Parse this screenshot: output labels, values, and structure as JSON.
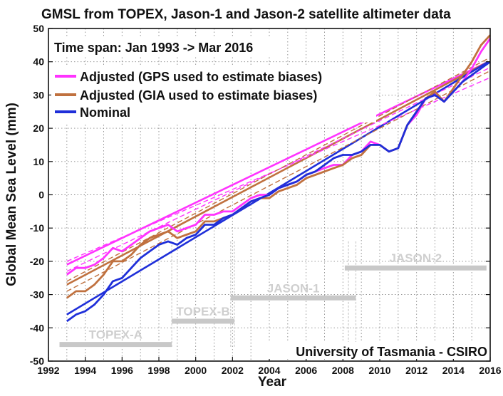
{
  "chart_data": {
    "type": "line",
    "title": "GMSL from TOPEX, Jason-1 and Jason-2 satellite altimeter data",
    "xlabel": "Year",
    "ylabel": "Global Mean Sea Level (mm)",
    "xlim": [
      1992,
      2016
    ],
    "ylim": [
      -50,
      50
    ],
    "xticks": [
      1992,
      1994,
      1996,
      1998,
      2000,
      2002,
      2004,
      2006,
      2008,
      2010,
      2012,
      2014,
      2016
    ],
    "yticks": [
      -50,
      -40,
      -30,
      -20,
      -10,
      0,
      10,
      20,
      30,
      40,
      50
    ],
    "grid": true,
    "legend_position": "top-left",
    "annotation_top": "Time span: Jan 1993 -> Mar 2016",
    "annotation_bottom": "University of Tasmania - CSIRO",
    "series": [
      {
        "name": "Adjusted (GPS used to estimate biases)",
        "color": "#ff33ff",
        "x": [
          1993.0,
          1993.5,
          1994.0,
          1994.5,
          1995.0,
          1995.5,
          1996.0,
          1996.5,
          1997.0,
          1997.5,
          1998.0,
          1998.5,
          1999.0,
          1999.5,
          2000.0,
          2000.5,
          2001.0,
          2001.5,
          2002.0,
          2002.5,
          2003.0,
          2003.5,
          2004.0,
          2004.5,
          2005.0,
          2005.5,
          2006.0,
          2006.5,
          2007.0,
          2007.5,
          2008.0,
          2008.5,
          2009.0,
          2009.5,
          2010.0,
          2010.5,
          2011.0,
          2011.5,
          2012.0,
          2012.5,
          2013.0,
          2013.5,
          2014.0,
          2014.5,
          2015.0,
          2015.5,
          2016.0
        ],
        "y": [
          -24,
          -22,
          -22,
          -21,
          -19,
          -16,
          -17,
          -15,
          -13,
          -11,
          -10,
          -9,
          -11,
          -10,
          -9,
          -6,
          -6,
          -5,
          -5,
          -3,
          -1,
          0,
          0,
          2,
          3,
          4,
          6,
          7,
          8,
          9,
          9,
          12,
          13,
          16,
          15,
          13,
          14,
          21,
          24,
          29,
          30,
          28,
          31,
          34,
          38,
          43,
          47
        ]
      },
      {
        "name": "Adjusted (GIA used to estimate biases)",
        "color": "#c0713f",
        "x": [
          1993.0,
          1993.5,
          1994.0,
          1994.5,
          1995.0,
          1995.5,
          1996.0,
          1996.5,
          1997.0,
          1997.5,
          1998.0,
          1998.5,
          1999.0,
          1999.5,
          2000.0,
          2000.5,
          2001.0,
          2001.5,
          2002.0,
          2002.5,
          2003.0,
          2003.5,
          2004.0,
          2004.5,
          2005.0,
          2005.5,
          2006.0,
          2006.5,
          2007.0,
          2007.5,
          2008.0,
          2008.5,
          2009.0,
          2009.5,
          2010.0,
          2010.5,
          2011.0,
          2011.5,
          2012.0,
          2012.5,
          2013.0,
          2013.5,
          2014.0,
          2014.5,
          2015.0,
          2015.5,
          2016.0
        ],
        "y": [
          -31,
          -29,
          -29,
          -27,
          -24,
          -20,
          -20,
          -18,
          -15,
          -13,
          -12,
          -11,
          -13,
          -12,
          -11,
          -8,
          -8,
          -7,
          -6,
          -4,
          -2,
          -1,
          -1,
          1,
          2,
          3,
          5,
          6,
          7,
          8,
          9,
          11,
          12,
          15,
          15,
          13,
          14,
          21,
          25,
          29,
          31,
          28,
          32,
          36,
          40,
          45,
          48
        ]
      },
      {
        "name": "Nominal",
        "color": "#1f2fd9",
        "x": [
          1993.0,
          1993.5,
          1994.0,
          1994.5,
          1995.0,
          1995.5,
          1996.0,
          1996.5,
          1997.0,
          1997.5,
          1998.0,
          1998.5,
          1999.0,
          1999.5,
          2000.0,
          2000.5,
          2001.0,
          2001.5,
          2002.0,
          2002.5,
          2003.0,
          2003.5,
          2004.0,
          2004.5,
          2005.0,
          2005.5,
          2006.0,
          2006.5,
          2007.0,
          2007.5,
          2008.0,
          2008.5,
          2009.0,
          2009.5,
          2010.0,
          2010.5,
          2011.0,
          2011.5,
          2012.0,
          2012.5,
          2013.0,
          2013.5,
          2014.0,
          2014.5,
          2015.0,
          2015.5,
          2016.0
        ],
        "y": [
          -38,
          -36,
          -35,
          -33,
          -30,
          -26,
          -25,
          -22,
          -19,
          -17,
          -15,
          -14,
          -15,
          -13,
          -12,
          -9,
          -9,
          -7,
          -6,
          -4,
          -2,
          -1,
          0,
          2,
          3,
          4,
          6,
          7,
          9,
          11,
          12,
          12,
          13,
          15,
          15,
          13,
          14,
          21,
          25,
          29,
          30,
          28,
          31,
          34,
          36,
          38,
          40
        ]
      }
    ],
    "trend_lines": [
      {
        "color": "#ff33ff",
        "dashed": false,
        "x": [
          1993.0,
          2015.9
        ],
        "y": [
          -21,
          40
        ]
      },
      {
        "color": "#c0713f",
        "dashed": false,
        "x": [
          1993.0,
          2015.9
        ],
        "y": [
          -27,
          40
        ]
      },
      {
        "color": "#1f2fd9",
        "dashed": false,
        "x": [
          1993.0,
          2015.9
        ],
        "y": [
          -36,
          40
        ]
      },
      {
        "color": "#ff33ff",
        "dashed": true,
        "x": [
          1993.0,
          2015.9
        ],
        "y": [
          -20,
          35
        ]
      },
      {
        "color": "#ff33ff",
        "dashed": true,
        "x": [
          1993.0,
          2015.9
        ],
        "y": [
          -23,
          38
        ]
      },
      {
        "color": "#c0713f",
        "dashed": true,
        "x": [
          1993.0,
          2015.9
        ],
        "y": [
          -29,
          37
        ]
      },
      {
        "color": "#c0713f",
        "dashed": true,
        "x": [
          1993.0,
          2015.9
        ],
        "y": [
          -26,
          41
        ]
      }
    ],
    "missions": [
      {
        "name": "TOPEX-A",
        "x_start": 1992.6,
        "x_end": 1998.7,
        "y": -45
      },
      {
        "name": "TOPEX-B",
        "x_start": 1998.7,
        "x_end": 2002.1,
        "y": -38
      },
      {
        "name": "JASON-1",
        "x_start": 2001.9,
        "x_end": 2008.7,
        "y": -31
      },
      {
        "name": "JASON-2",
        "x_start": 2008.1,
        "x_end": 2015.8,
        "y": -22
      }
    ],
    "mission_dividers": [
      1998.7,
      2001.9,
      2002.1,
      2008.3,
      2008.7
    ]
  }
}
